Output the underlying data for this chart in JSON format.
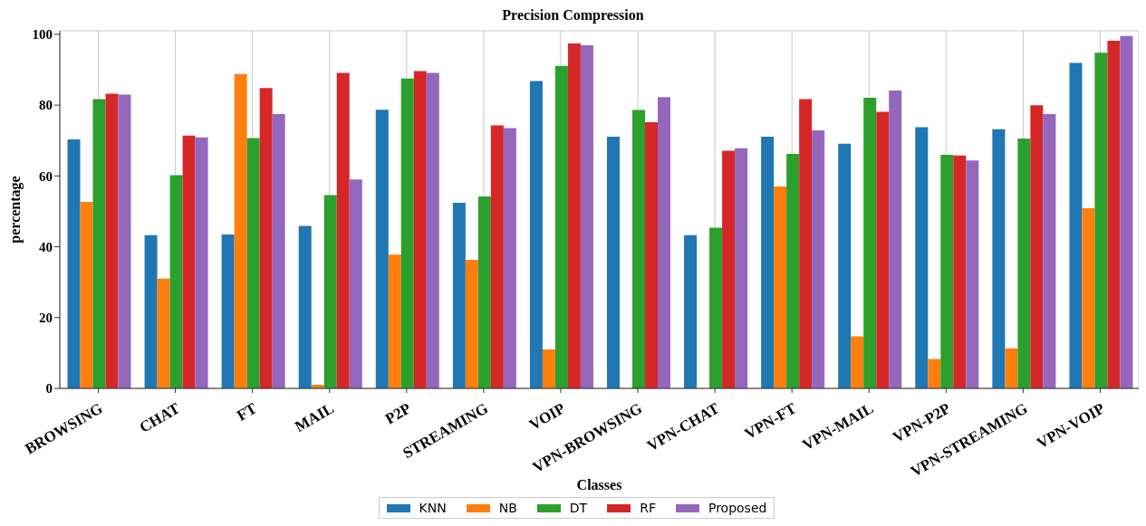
{
  "chart_data": {
    "type": "bar",
    "title": "Precision Compression",
    "xlabel": "Classes",
    "ylabel": "percentage",
    "categories": [
      "BROWSING",
      "CHAT",
      "FT",
      "MAIL",
      "P2P",
      "STREAMING",
      "VOIP",
      "VPN-BROWSING",
      "VPN-CHAT",
      "VPN-FT",
      "VPN-MAIL",
      "VPN-P2P",
      "VPN-STREAMING",
      "VPN-VOIP"
    ],
    "series": [
      {
        "name": "KNN",
        "color": "#1f77b4",
        "values": [
          70.3,
          43.3,
          43.5,
          45.9,
          78.7,
          52.4,
          86.8,
          71.1,
          43.3,
          71.1,
          69.1,
          73.8,
          73.2,
          91.9
        ]
      },
      {
        "name": "NB",
        "color": "#ff7f0e",
        "values": [
          52.7,
          31,
          88.8,
          1,
          37.8,
          36.3,
          11,
          0,
          0,
          57,
          14.7,
          8.3,
          11.3,
          50.9
        ]
      },
      {
        "name": "DT",
        "color": "#2ca02c",
        "values": [
          81.7,
          60.2,
          70.7,
          54.6,
          87.5,
          54.2,
          91.1,
          78.6,
          45.4,
          66.2,
          82.1,
          66,
          70.6,
          94.8
        ]
      },
      {
        "name": "RF",
        "color": "#d62728",
        "values": [
          83.2,
          71.4,
          84.8,
          89.1,
          89.6,
          74.3,
          97.4,
          75.2,
          67.1,
          81.7,
          78.1,
          65.8,
          80,
          98.2
        ]
      },
      {
        "name": "Proposed",
        "color": "#9467bd",
        "values": [
          83,
          70.9,
          77.5,
          59,
          89.1,
          73.5,
          96.9,
          82.3,
          67.8,
          72.9,
          84.1,
          64.4,
          77.5,
          99.5
        ]
      }
    ],
    "ylim": [
      0,
      101
    ],
    "yticks": [
      0,
      20,
      40,
      60,
      80,
      100
    ],
    "grid": true,
    "legend": "bottom"
  }
}
